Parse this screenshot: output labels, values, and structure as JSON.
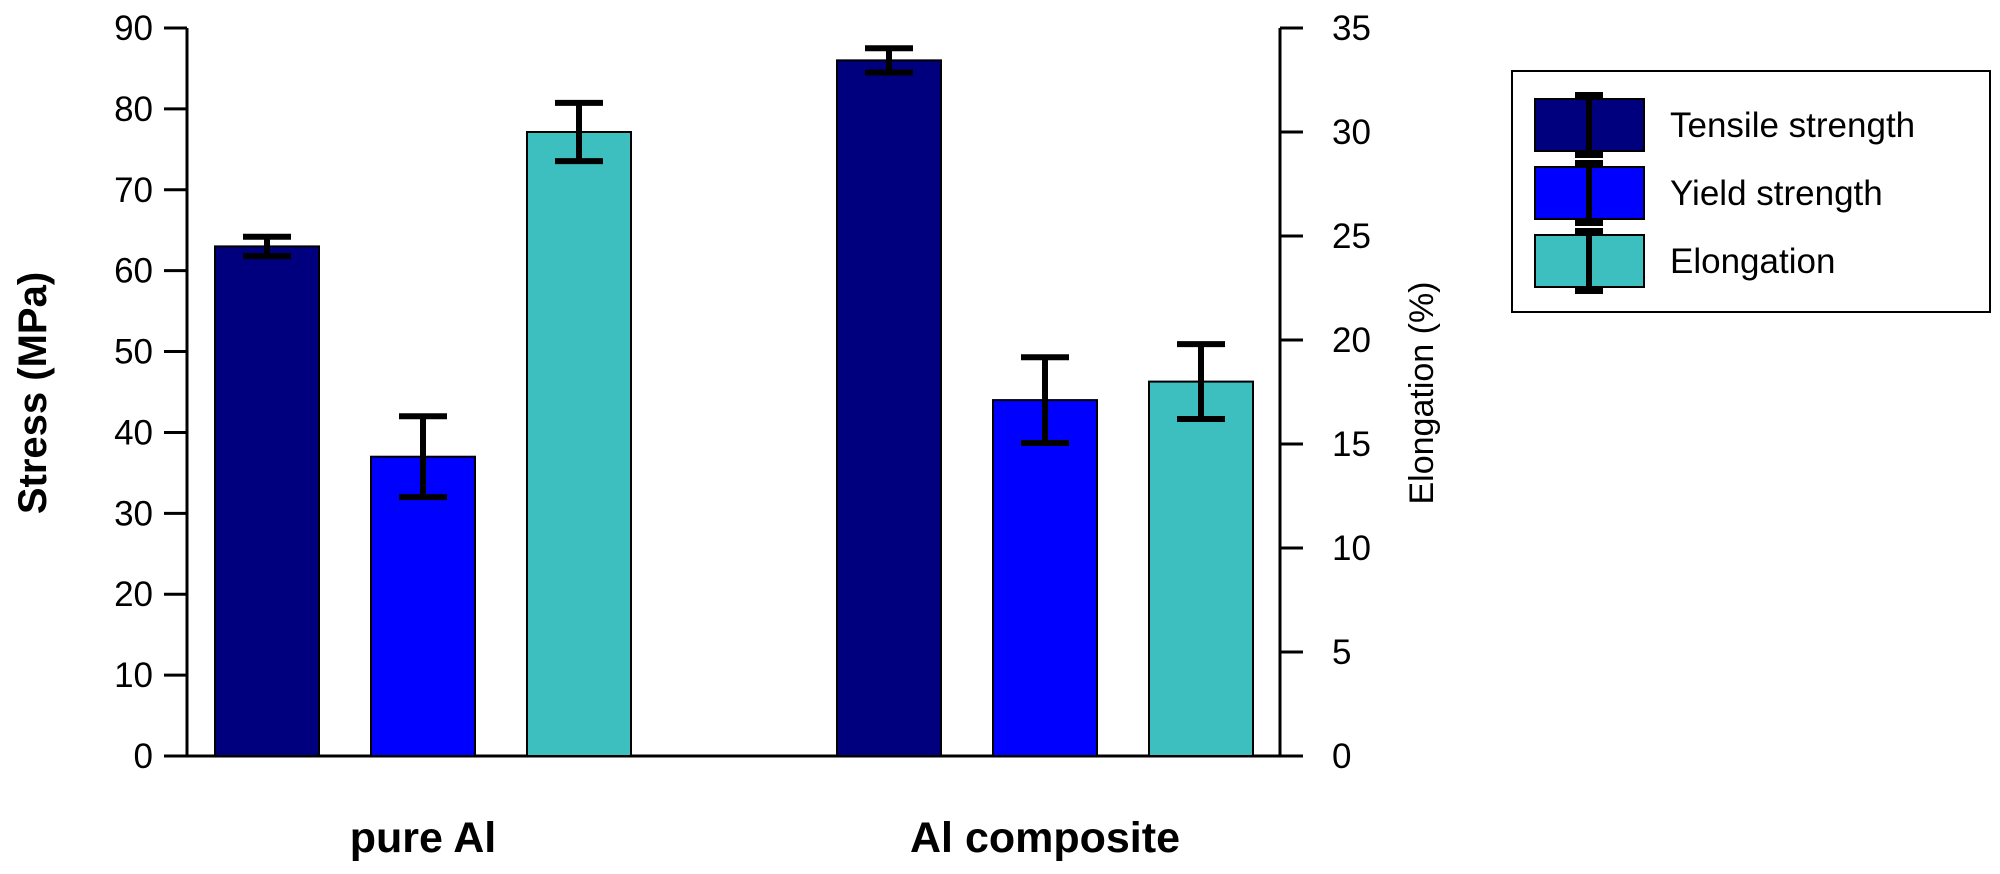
{
  "chart_data": {
    "type": "bar",
    "categories": [
      "pure Al",
      "Al composite"
    ],
    "series": [
      {
        "name": "Tensile strength",
        "axis": "left",
        "color": "#00007f",
        "values": [
          63,
          86
        ],
        "errors": [
          1.2,
          1.5
        ]
      },
      {
        "name": "Yield strength",
        "axis": "left",
        "color": "#0000ff",
        "values": [
          37,
          44
        ],
        "errors": [
          5,
          5.3
        ]
      },
      {
        "name": "Elongation",
        "axis": "right",
        "color": "#3dbfbf",
        "values": [
          30,
          18
        ],
        "errors": [
          1.4,
          1.8
        ]
      }
    ],
    "ylabel": "Stress (MPa)",
    "ylabel_right": "Elongation (%)",
    "ylim": [
      0,
      90
    ],
    "ylim_right": [
      0,
      35
    ],
    "yticks": [
      0,
      10,
      20,
      30,
      40,
      50,
      60,
      70,
      80,
      90
    ],
    "yticks_right": [
      0,
      5,
      10,
      15,
      20,
      25,
      30,
      35
    ],
    "legend_position": "right",
    "grid": false
  }
}
